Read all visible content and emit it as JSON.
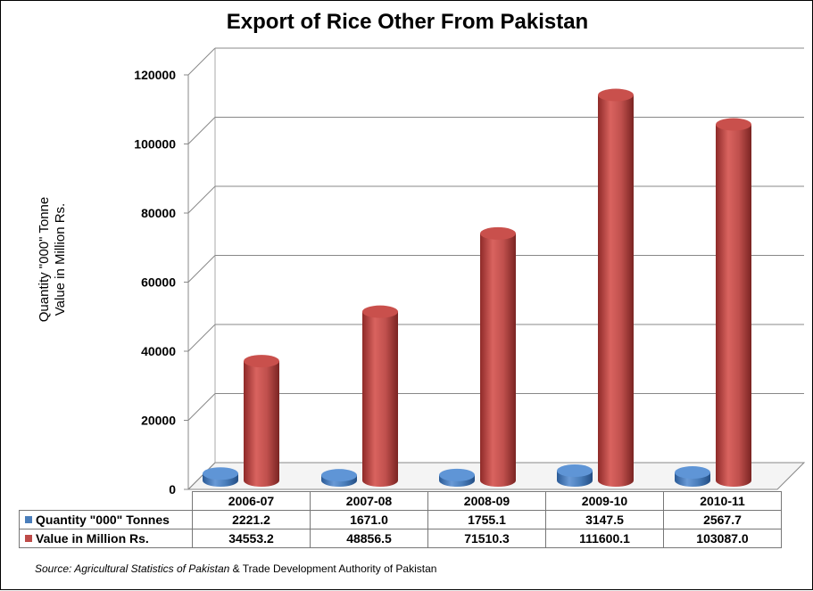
{
  "title": "Export of Rice Other From Pakistan",
  "ylabel_line1": "Quantity \"000\" Tonne",
  "ylabel_line2": "Value in Million Rs.",
  "source_italic": "Source: Agricultural Statistics of Pakistan",
  "source_rest": " & Trade Development Authority of Pakistan",
  "chart_data": {
    "type": "bar",
    "categories": [
      "2006-07",
      "2007-08",
      "2008-09",
      "2009-10",
      "2010-11"
    ],
    "series": [
      {
        "name": "Quantity \"000\" Tonnes",
        "color": "#4a7ebb",
        "values": [
          2221.2,
          1671.0,
          1755.1,
          3147.5,
          2567.7
        ],
        "display": [
          "2221.2",
          "1671.0",
          "1755.1",
          "3147.5",
          "2567.7"
        ]
      },
      {
        "name": "Value in Million Rs.",
        "color": "#be4b48",
        "values": [
          34553.2,
          48856.5,
          71510.3,
          111600.1,
          103087.0
        ],
        "display": [
          "34553.2",
          "48856.5",
          "71510.3",
          "111600.1",
          "103087.0"
        ]
      }
    ],
    "yticks": [
      "0",
      "20000",
      "40000",
      "60000",
      "80000",
      "100000",
      "120000"
    ],
    "ylim": [
      0,
      120000
    ],
    "grid": true,
    "legend": "data-table"
  }
}
